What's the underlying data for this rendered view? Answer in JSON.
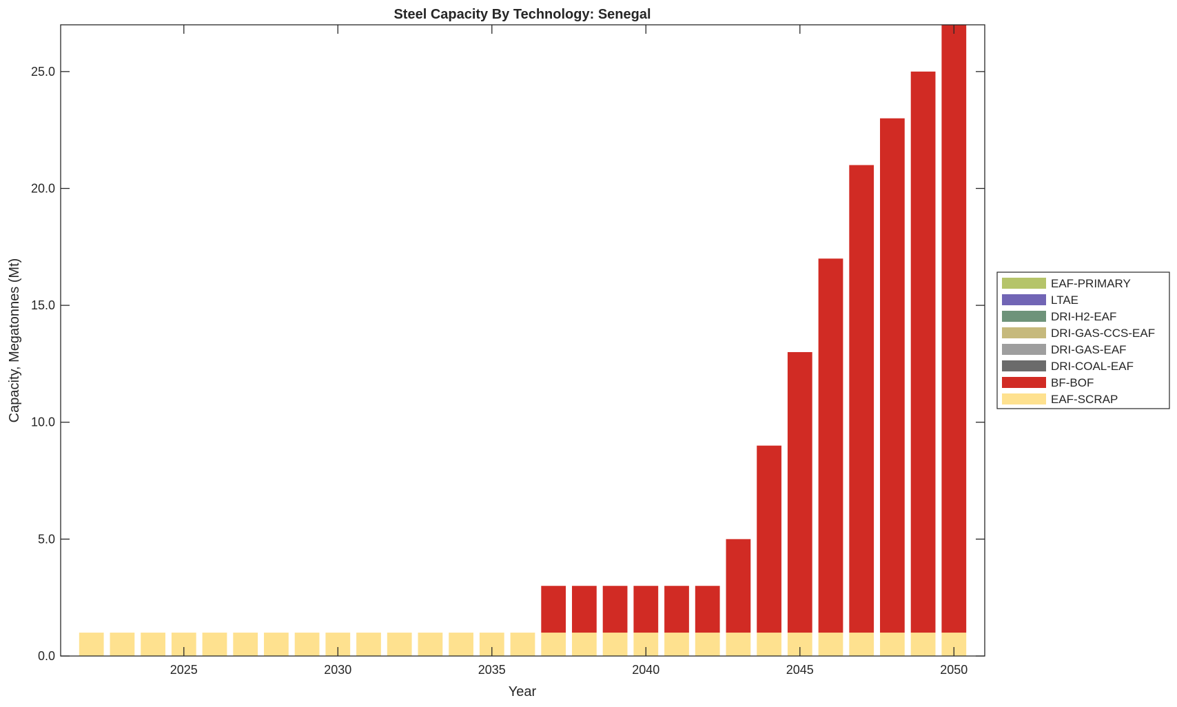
{
  "chart_data": {
    "type": "bar",
    "stacked": true,
    "title": "Steel Capacity By Technology: Senegal",
    "xlabel": "Year",
    "ylabel": "Capacity, Megatonnes (Mt)",
    "xlim": [
      2021,
      2051
    ],
    "ylim": [
      0,
      27
    ],
    "xticks": [
      2025,
      2030,
      2035,
      2040,
      2045,
      2050
    ],
    "yticks": [
      "0.0",
      "5.0",
      "10.0",
      "15.0",
      "20.0",
      "25.0"
    ],
    "grid": false,
    "legend_position": "right",
    "x": [
      2022,
      2023,
      2024,
      2025,
      2026,
      2027,
      2028,
      2029,
      2030,
      2031,
      2032,
      2033,
      2034,
      2035,
      2036,
      2037,
      2038,
      2039,
      2040,
      2041,
      2042,
      2043,
      2044,
      2045,
      2046,
      2047,
      2048,
      2049,
      2050
    ],
    "series": [
      {
        "name": "EAF-SCRAP",
        "color": "#fee18f",
        "values": [
          1,
          1,
          1,
          1,
          1,
          1,
          1,
          1,
          1,
          1,
          1,
          1,
          1,
          1,
          1,
          1,
          1,
          1,
          1,
          1,
          1,
          1,
          1,
          1,
          1,
          1,
          1,
          1,
          1
        ]
      },
      {
        "name": "BF-BOF",
        "color": "#d12b24",
        "values": [
          0,
          0,
          0,
          0,
          0,
          0,
          0,
          0,
          0,
          0,
          0,
          0,
          0,
          0,
          0,
          2,
          2,
          2,
          2,
          2,
          2,
          4,
          8,
          12,
          16,
          20,
          22,
          24,
          26
        ]
      },
      {
        "name": "DRI-COAL-EAF",
        "color": "#6b6b6b",
        "values": [
          0,
          0,
          0,
          0,
          0,
          0,
          0,
          0,
          0,
          0,
          0,
          0,
          0,
          0,
          0,
          0,
          0,
          0,
          0,
          0,
          0,
          0,
          0,
          0,
          0,
          0,
          0,
          0,
          0
        ]
      },
      {
        "name": "DRI-GAS-EAF",
        "color": "#9e9e9e",
        "values": [
          0,
          0,
          0,
          0,
          0,
          0,
          0,
          0,
          0,
          0,
          0,
          0,
          0,
          0,
          0,
          0,
          0,
          0,
          0,
          0,
          0,
          0,
          0,
          0,
          0,
          0,
          0,
          0,
          0
        ]
      },
      {
        "name": "DRI-GAS-CCS-EAF",
        "color": "#c6b97c",
        "values": [
          0,
          0,
          0,
          0,
          0,
          0,
          0,
          0,
          0,
          0,
          0,
          0,
          0,
          0,
          0,
          0,
          0,
          0,
          0,
          0,
          0,
          0,
          0,
          0,
          0,
          0,
          0,
          0,
          0
        ]
      },
      {
        "name": "DRI-H2-EAF",
        "color": "#6e937a",
        "values": [
          0,
          0,
          0,
          0,
          0,
          0,
          0,
          0,
          0,
          0,
          0,
          0,
          0,
          0,
          0,
          0,
          0,
          0,
          0,
          0,
          0,
          0,
          0,
          0,
          0,
          0,
          0,
          0,
          0
        ]
      },
      {
        "name": "LTAE",
        "color": "#7165b5",
        "values": [
          0,
          0,
          0,
          0,
          0,
          0,
          0,
          0,
          0,
          0,
          0,
          0,
          0,
          0,
          0,
          0,
          0,
          0,
          0,
          0,
          0,
          0,
          0,
          0,
          0,
          0,
          0,
          0,
          0
        ]
      },
      {
        "name": "EAF-PRIMARY",
        "color": "#b5c46a",
        "values": [
          0,
          0,
          0,
          0,
          0,
          0,
          0,
          0,
          0,
          0,
          0,
          0,
          0,
          0,
          0,
          0,
          0,
          0,
          0,
          0,
          0,
          0,
          0,
          0,
          0,
          0,
          0,
          0,
          0
        ]
      }
    ]
  }
}
